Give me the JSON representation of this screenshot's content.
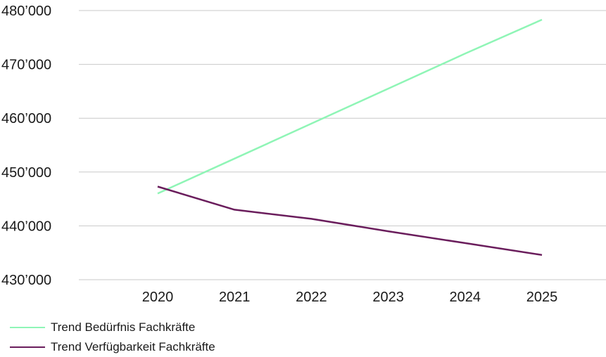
{
  "chart_data": {
    "type": "line",
    "x": [
      "2020",
      "2021",
      "2022",
      "2023",
      "2024",
      "2025"
    ],
    "ylim": [
      430000,
      480000
    ],
    "yticks": [
      430000,
      440000,
      450000,
      460000,
      470000,
      480000
    ],
    "ytick_labels": [
      "430’000",
      "440’000",
      "450’000",
      "460’000",
      "470’000",
      "480’000"
    ],
    "grid": "horizontal",
    "legend_position": "bottom-left",
    "series": [
      {
        "name": "Trend Bedürfnis Fachkräfte",
        "color": "#8ff5b6",
        "values": [
          446000,
          452500,
          459000,
          465500,
          472000,
          478300
        ]
      },
      {
        "name": "Trend Verfügbarkeit Fachkräfte",
        "color": "#6a1d5c",
        "values": [
          447300,
          443000,
          441300,
          439000,
          436800,
          434600
        ]
      }
    ]
  }
}
